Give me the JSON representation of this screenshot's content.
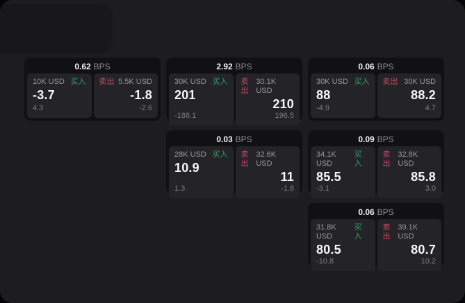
{
  "labels": {
    "bps_unit": "BPS",
    "buy": "买入",
    "sell": "卖出"
  },
  "colors": {
    "page_background": "#1d1d1f",
    "card_background": "#111113",
    "panel_background": "#242428",
    "buy_accent": "#37a266",
    "sell_accent": "#c84a5f"
  },
  "cards": [
    {
      "bps_value": "0.62",
      "buy": {
        "amount": "10K USD",
        "value": "-3.7",
        "delta": "4.3"
      },
      "sell": {
        "amount": "5.5K USD",
        "value": "-1.8",
        "delta": "-2.6"
      }
    },
    {
      "bps_value": "2.92",
      "buy": {
        "amount": "30K USD",
        "value": "201",
        "delta": "-188.1"
      },
      "sell": {
        "amount": "30.1K USD",
        "value": "210",
        "delta": "196.5"
      }
    },
    {
      "bps_value": "0.06",
      "buy": {
        "amount": "30K USD",
        "value": "88",
        "delta": "-4.9"
      },
      "sell": {
        "amount": "30K USD",
        "value": "88.2",
        "delta": "4.7"
      }
    },
    {
      "bps_value": "0.03",
      "buy": {
        "amount": "28K USD",
        "value": "10.9",
        "delta": "1.3"
      },
      "sell": {
        "amount": "32.6K USD",
        "value": "11",
        "delta": "-1.8"
      }
    },
    {
      "bps_value": "0.09",
      "buy": {
        "amount": "34.1K USD",
        "value": "85.5",
        "delta": "-3.1"
      },
      "sell": {
        "amount": "32.8K USD",
        "value": "85.8",
        "delta": "3.0"
      }
    },
    {
      "bps_value": "0.06",
      "buy": {
        "amount": "31.8K USD",
        "value": "80.5",
        "delta": "-10.8"
      },
      "sell": {
        "amount": "39.1K USD",
        "value": "80.7",
        "delta": "10.2"
      }
    }
  ]
}
